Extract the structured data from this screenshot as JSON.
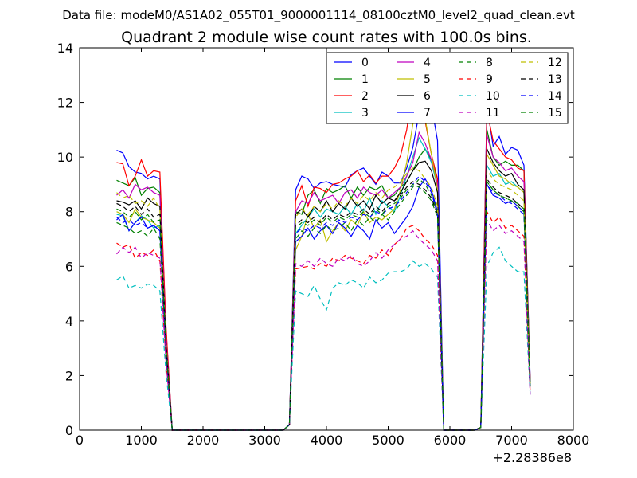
{
  "suptitle": "Data file: modeM0/AS1A02_055T01_9000001114_08100cztM0_level2_quad_clean.evt",
  "chart_data": {
    "type": "line",
    "title": "Quadrant 2 module wise count rates with 100.0s bins.",
    "xlabel": "",
    "ylabel": "",
    "x_offset_label": "+2.28386e8",
    "xlim": [
      0,
      8000
    ],
    "ylim": [
      0,
      14
    ],
    "xticks": [
      0,
      1000,
      2000,
      3000,
      4000,
      5000,
      6000,
      7000,
      8000
    ],
    "yticks": [
      0,
      2,
      4,
      6,
      8,
      10,
      12,
      14
    ],
    "legend_position": "top-right",
    "legend_columns": 4,
    "x": [
      600,
      700,
      800,
      900,
      1000,
      1100,
      1200,
      1300,
      1400,
      1500,
      1600,
      1700,
      1800,
      1900,
      2000,
      2100,
      2200,
      2300,
      2400,
      2500,
      2600,
      2700,
      2800,
      2900,
      3000,
      3100,
      3200,
      3300,
      3400,
      3500,
      3600,
      3700,
      3800,
      3900,
      4000,
      4100,
      4200,
      4300,
      4400,
      4500,
      4600,
      4700,
      4800,
      4900,
      5000,
      5100,
      5200,
      5300,
      5400,
      5500,
      5600,
      5700,
      5800,
      5900,
      6000,
      6100,
      6200,
      6300,
      6400,
      6500,
      6600,
      6700,
      6800,
      6900,
      7000,
      7100,
      7200,
      7300
    ],
    "series": [
      {
        "name": "0",
        "color": "#0000ff",
        "dash": "solid",
        "values": [
          10.25,
          10.15,
          9.65,
          9.45,
          9.4,
          9.2,
          9.3,
          9.2,
          3.7,
          0,
          0,
          0,
          0,
          0,
          0,
          0,
          0,
          0,
          0,
          0,
          0,
          0,
          0,
          0,
          0,
          0,
          0,
          0,
          0.2,
          8.8,
          9.3,
          9.2,
          8.85,
          9.05,
          9.1,
          9.0,
          8.95,
          8.9,
          9.35,
          9.5,
          9.6,
          9.3,
          9.0,
          9.45,
          9.3,
          9.05,
          9.05,
          9.6,
          10.35,
          11.6,
          12.4,
          11.9,
          10.6,
          0,
          0,
          0,
          0,
          0,
          0,
          0.1,
          11.9,
          10.4,
          10.75,
          10.1,
          10.35,
          10.25,
          9.7,
          1.9
        ]
      },
      {
        "name": "1",
        "color": "#008000",
        "dash": "solid",
        "values": [
          9.15,
          9.05,
          8.95,
          9.25,
          8.6,
          8.85,
          8.9,
          8.7,
          3.3,
          0,
          0,
          0,
          0,
          0,
          0,
          0,
          0,
          0,
          0,
          0,
          0,
          0,
          0,
          0,
          0,
          0,
          0,
          0,
          0.2,
          8.0,
          7.9,
          8.6,
          8.8,
          8.3,
          8.85,
          8.7,
          8.8,
          8.95,
          8.5,
          8.9,
          8.6,
          8.9,
          8.8,
          8.95,
          8.5,
          8.6,
          8.9,
          9.1,
          9.5,
          10.0,
          10.3,
          9.9,
          9.2,
          0,
          0,
          0,
          0,
          0,
          0,
          0.1,
          11.0,
          10.0,
          9.7,
          9.85,
          9.7,
          9.7,
          9.5,
          1.8
        ]
      },
      {
        "name": "2",
        "color": "#ff0000",
        "dash": "solid",
        "values": [
          9.8,
          9.75,
          8.95,
          9.3,
          9.9,
          9.3,
          9.5,
          9.45,
          3.8,
          0,
          0,
          0,
          0,
          0,
          0,
          0,
          0,
          0,
          0,
          0,
          0,
          0,
          0,
          0,
          0,
          0,
          0,
          0,
          0.2,
          8.4,
          8.95,
          8.2,
          8.9,
          8.85,
          8.7,
          9.0,
          9.05,
          9.2,
          9.3,
          9.5,
          9.1,
          9.35,
          9.05,
          9.3,
          9.3,
          9.6,
          10.05,
          11.0,
          12.5,
          12.4,
          11.3,
          10.1,
          9.2,
          0,
          0,
          0,
          0,
          0,
          0,
          0.1,
          11.7,
          10.6,
          10.3,
          10.0,
          9.9,
          9.6,
          9.5,
          1.8
        ]
      },
      {
        "name": "3",
        "color": "#00bfbf",
        "dash": "solid",
        "values": [
          7.9,
          7.85,
          7.3,
          7.6,
          7.85,
          7.7,
          7.4,
          7.5,
          3.0,
          0,
          0,
          0,
          0,
          0,
          0,
          0,
          0,
          0,
          0,
          0,
          0,
          0,
          0,
          0,
          0,
          0,
          0,
          0,
          0.2,
          7.2,
          7.5,
          7.8,
          8.1,
          7.8,
          8.1,
          8.0,
          7.9,
          8.2,
          7.9,
          8.3,
          8.0,
          8.5,
          7.9,
          8.4,
          8.2,
          8.0,
          8.6,
          9.3,
          10.0,
          10.7,
          10.3,
          9.8,
          8.9,
          0,
          0,
          0,
          0,
          0,
          0,
          0.1,
          9.7,
          9.3,
          9.4,
          9.0,
          9.1,
          8.9,
          8.7,
          1.7
        ]
      },
      {
        "name": "4",
        "color": "#bf00bf",
        "dash": "solid",
        "values": [
          8.6,
          8.8,
          8.5,
          9.0,
          8.8,
          8.9,
          8.7,
          8.6,
          3.4,
          0,
          0,
          0,
          0,
          0,
          0,
          0,
          0,
          0,
          0,
          0,
          0,
          0,
          0,
          0,
          0,
          0,
          0,
          0,
          0.2,
          8.0,
          8.4,
          8.3,
          8.7,
          8.4,
          8.5,
          8.6,
          8.3,
          8.7,
          8.8,
          8.5,
          8.9,
          8.7,
          8.6,
          8.8,
          8.5,
          8.7,
          8.9,
          9.3,
          9.8,
          10.9,
          10.5,
          9.9,
          9.0,
          0,
          0,
          0,
          0,
          0,
          0,
          0.1,
          10.8,
          10.0,
          9.8,
          9.5,
          9.6,
          9.3,
          9.1,
          1.8
        ]
      },
      {
        "name": "5",
        "color": "#bfbf00",
        "dash": "solid",
        "values": [
          8.0,
          7.9,
          7.6,
          8.1,
          7.8,
          7.7,
          7.6,
          7.4,
          2.9,
          0,
          0,
          0,
          0,
          0,
          0,
          0,
          0,
          0,
          0,
          0,
          0,
          0,
          0,
          0,
          0,
          0,
          0,
          0,
          0.2,
          6.6,
          7.1,
          7.9,
          7.4,
          7.7,
          6.9,
          7.3,
          7.6,
          7.3,
          7.7,
          7.5,
          8.0,
          7.6,
          7.8,
          7.7,
          7.9,
          8.1,
          8.8,
          9.8,
          11.2,
          11.8,
          11.4,
          10.1,
          8.8,
          0,
          0,
          0,
          0,
          0,
          0,
          0.1,
          10.1,
          9.7,
          9.3,
          9.2,
          9.0,
          8.9,
          8.7,
          1.7
        ]
      },
      {
        "name": "6",
        "color": "#000000",
        "dash": "solid",
        "values": [
          8.4,
          8.35,
          8.25,
          8.4,
          8.1,
          8.5,
          8.3,
          8.2,
          3.2,
          0,
          0,
          0,
          0,
          0,
          0,
          0,
          0,
          0,
          0,
          0,
          0,
          0,
          0,
          0,
          0,
          0,
          0,
          0,
          0.2,
          7.9,
          8.1,
          7.8,
          8.2,
          8.0,
          8.4,
          8.0,
          8.3,
          8.1,
          8.5,
          8.2,
          8.4,
          8.1,
          8.6,
          8.3,
          8.5,
          8.4,
          8.7,
          9.1,
          9.5,
          9.8,
          9.85,
          9.5,
          8.7,
          0,
          0,
          0,
          0,
          0,
          0,
          0.1,
          10.3,
          9.8,
          9.5,
          9.3,
          9.4,
          9.0,
          8.8,
          1.7
        ]
      },
      {
        "name": "7",
        "color": "#0000ff",
        "dash": "solid",
        "values": [
          7.7,
          7.9,
          7.3,
          7.6,
          7.8,
          7.4,
          7.5,
          7.3,
          2.9,
          0,
          0,
          0,
          0,
          0,
          0,
          0,
          0,
          0,
          0,
          0,
          0,
          0,
          0,
          0,
          0,
          0,
          0,
          0,
          0.2,
          6.9,
          7.1,
          7.4,
          7.0,
          7.3,
          7.5,
          7.2,
          7.6,
          7.4,
          7.1,
          7.5,
          7.3,
          7.0,
          7.7,
          7.4,
          7.6,
          7.2,
          7.5,
          7.8,
          8.2,
          8.9,
          9.2,
          8.8,
          8.0,
          0,
          0,
          0,
          0,
          0,
          0,
          0.1,
          9.0,
          8.6,
          8.5,
          8.3,
          8.4,
          8.2,
          8.0,
          1.6
        ]
      },
      {
        "name": "8",
        "color": "#008000",
        "dash": "dashed",
        "values": [
          7.6,
          7.5,
          7.4,
          7.2,
          7.3,
          7.1,
          7.4,
          7.0,
          2.8,
          0,
          0,
          0,
          0,
          0,
          0,
          0,
          0,
          0,
          0,
          0,
          0,
          0,
          0,
          0,
          0,
          0,
          0,
          0,
          0.2,
          7.0,
          7.3,
          7.1,
          7.4,
          7.2,
          7.5,
          7.3,
          7.4,
          7.6,
          7.3,
          7.7,
          7.5,
          7.8,
          7.6,
          7.9,
          7.7,
          8.0,
          8.3,
          8.6,
          8.9,
          9.2,
          9.0,
          8.6,
          8.0,
          0,
          0,
          0,
          0,
          0,
          0,
          0.1,
          9.1,
          8.8,
          8.6,
          8.5,
          8.4,
          8.3,
          8.1,
          1.6
        ]
      },
      {
        "name": "9",
        "color": "#ff0000",
        "dash": "dashed",
        "values": [
          6.85,
          6.7,
          6.8,
          6.3,
          6.5,
          6.4,
          6.6,
          6.2,
          2.5,
          0,
          0,
          0,
          0,
          0,
          0,
          0,
          0,
          0,
          0,
          0,
          0,
          0,
          0,
          0,
          0,
          0,
          0,
          0,
          0.2,
          5.9,
          5.95,
          6.0,
          5.9,
          6.1,
          6.0,
          6.3,
          6.2,
          6.4,
          6.3,
          6.2,
          6.1,
          6.4,
          6.3,
          6.6,
          6.4,
          6.8,
          7.0,
          7.4,
          7.5,
          7.3,
          7.0,
          6.8,
          6.4,
          0,
          0,
          0,
          0,
          0,
          0,
          0.1,
          8.0,
          7.6,
          7.8,
          7.4,
          7.5,
          7.3,
          7.1,
          1.4
        ]
      },
      {
        "name": "10",
        "color": "#00bfbf",
        "dash": "dashed",
        "values": [
          5.5,
          5.65,
          5.2,
          5.3,
          5.2,
          5.35,
          5.3,
          5.1,
          2.1,
          0,
          0,
          0,
          0,
          0,
          0,
          0,
          0,
          0,
          0,
          0,
          0,
          0,
          0,
          0,
          0,
          0,
          0,
          0,
          0.2,
          5.1,
          5.0,
          4.9,
          5.3,
          4.8,
          4.4,
          5.2,
          5.4,
          5.3,
          5.5,
          5.4,
          5.2,
          5.6,
          5.4,
          5.5,
          5.75,
          5.8,
          5.8,
          5.9,
          6.2,
          6.0,
          6.1,
          5.9,
          5.6,
          0,
          0,
          0,
          0,
          0,
          0,
          0.1,
          6.0,
          6.5,
          6.7,
          6.2,
          6.0,
          5.8,
          5.8,
          1.3
        ]
      },
      {
        "name": "11",
        "color": "#bf00bf",
        "dash": "dashed",
        "values": [
          6.45,
          6.7,
          6.5,
          6.7,
          6.3,
          6.5,
          6.4,
          6.3,
          2.5,
          0,
          0,
          0,
          0,
          0,
          0,
          0,
          0,
          0,
          0,
          0,
          0,
          0,
          0,
          0,
          0,
          0,
          0,
          0,
          0.2,
          6.1,
          6.0,
          6.2,
          6.0,
          6.3,
          6.1,
          6.0,
          6.3,
          6.2,
          6.4,
          6.1,
          6.0,
          6.2,
          6.5,
          6.3,
          6.6,
          6.8,
          7.0,
          7.1,
          7.3,
          7.0,
          6.8,
          6.6,
          6.2,
          0,
          0,
          0,
          0,
          0,
          0,
          0.1,
          7.7,
          7.3,
          7.5,
          7.2,
          7.3,
          7.1,
          6.9,
          1.3
        ]
      },
      {
        "name": "12",
        "color": "#bfbf00",
        "dash": "dashed",
        "values": [
          8.7,
          8.5,
          8.6,
          8.3,
          8.4,
          8.2,
          8.5,
          8.1,
          3.2,
          0,
          0,
          0,
          0,
          0,
          0,
          0,
          0,
          0,
          0,
          0,
          0,
          0,
          0,
          0,
          0,
          0,
          0,
          0,
          0.2,
          7.8,
          8.1,
          7.9,
          8.2,
          8.0,
          8.3,
          8.1,
          8.4,
          8.2,
          8.5,
          8.3,
          8.6,
          8.4,
          8.7,
          8.5,
          8.8,
          8.9,
          9.1,
          9.4,
          9.6,
          9.5,
          9.2,
          8.9,
          8.2,
          0,
          0,
          0,
          0,
          0,
          0,
          0.1,
          9.5,
          9.2,
          9.0,
          8.9,
          8.8,
          8.6,
          8.4,
          1.7
        ]
      },
      {
        "name": "13",
        "color": "#000000",
        "dash": "dashed",
        "values": [
          8.3,
          8.2,
          8.0,
          8.2,
          7.9,
          8.1,
          7.8,
          7.9,
          3.1,
          0,
          0,
          0,
          0,
          0,
          0,
          0,
          0,
          0,
          0,
          0,
          0,
          0,
          0,
          0,
          0,
          0,
          0,
          0,
          0.2,
          7.5,
          7.7,
          7.6,
          7.8,
          7.6,
          7.9,
          7.7,
          7.9,
          7.8,
          8.0,
          7.9,
          8.1,
          7.9,
          8.2,
          8.0,
          8.3,
          8.4,
          8.6,
          8.9,
          9.1,
          9.0,
          8.8,
          8.5,
          7.9,
          0,
          0,
          0,
          0,
          0,
          0,
          0.1,
          9.2,
          8.9,
          8.7,
          8.6,
          8.5,
          8.3,
          8.1,
          1.6
        ]
      },
      {
        "name": "14",
        "color": "#0000ff",
        "dash": "dashed",
        "values": [
          7.8,
          7.6,
          7.7,
          7.5,
          7.6,
          7.4,
          7.5,
          7.3,
          2.9,
          0,
          0,
          0,
          0,
          0,
          0,
          0,
          0,
          0,
          0,
          0,
          0,
          0,
          0,
          0,
          0,
          0,
          0,
          0,
          0.2,
          7.2,
          7.4,
          7.3,
          7.5,
          7.4,
          7.6,
          7.5,
          7.7,
          7.6,
          7.8,
          7.7,
          7.9,
          7.8,
          8.0,
          7.9,
          8.1,
          8.2,
          8.4,
          8.7,
          9.0,
          9.3,
          9.1,
          8.7,
          7.9,
          0,
          0,
          0,
          0,
          0,
          0,
          0.1,
          9.0,
          8.7,
          8.6,
          8.4,
          8.3,
          8.1,
          7.9,
          1.6
        ]
      },
      {
        "name": "15",
        "color": "#008000",
        "dash": "dashed",
        "values": [
          8.1,
          8.0,
          7.8,
          8.0,
          7.7,
          7.9,
          7.6,
          7.7,
          3.0,
          0,
          0,
          0,
          0,
          0,
          0,
          0,
          0,
          0,
          0,
          0,
          0,
          0,
          0,
          0,
          0,
          0,
          0,
          0,
          0.2,
          7.4,
          7.6,
          7.5,
          7.7,
          7.5,
          7.8,
          7.6,
          7.8,
          7.7,
          7.9,
          7.8,
          8.0,
          7.8,
          8.1,
          7.9,
          8.2,
          8.3,
          8.5,
          8.8,
          9.0,
          8.9,
          8.7,
          8.4,
          7.8,
          0,
          0,
          0,
          0,
          0,
          0,
          0.1,
          9.1,
          8.8,
          8.6,
          8.5,
          8.4,
          8.2,
          8.0,
          1.6
        ]
      }
    ]
  }
}
